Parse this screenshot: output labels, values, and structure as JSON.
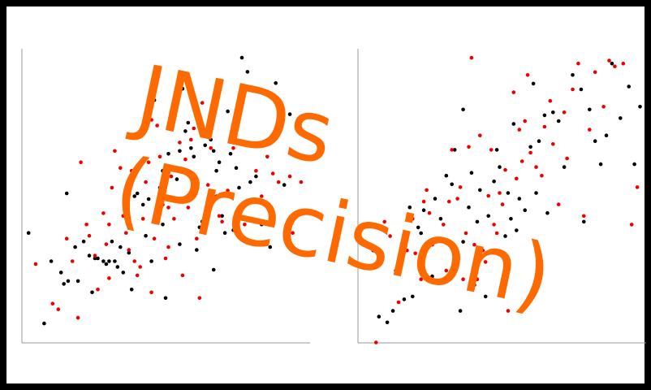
{
  "overlay": {
    "line1": "JNDs",
    "line2": "(Precision)",
    "color": "#ff6a00"
  },
  "colors": {
    "frame": "#000000",
    "background": "#ffffff",
    "axis": "#9a9a9a",
    "series_a": "#000000",
    "series_b": "#ee0000"
  },
  "chart_data": [
    {
      "type": "scatter",
      "xlabel": "",
      "ylabel": "",
      "xlim": [
        0,
        10
      ],
      "ylim": [
        0,
        10
      ],
      "grid": false,
      "series": [
        {
          "color": "#000000",
          "points": [
            [
              0.15,
              3.6
            ],
            [
              0.7,
              0.4
            ],
            [
              0.95,
              2.6
            ],
            [
              1.3,
              2.2
            ],
            [
              1.4,
              1.8
            ],
            [
              1.55,
              1.9
            ],
            [
              1.5,
              5.0
            ],
            [
              1.8,
              3.1
            ],
            [
              1.9,
              1.9
            ],
            [
              2.1,
              3.3
            ],
            [
              2.3,
              2.8
            ],
            [
              2.5,
              2.7
            ],
            [
              2.6,
              2.7
            ],
            [
              2.8,
              2.6
            ],
            [
              2.9,
              2.5
            ],
            [
              3.0,
              2.6
            ],
            [
              3.1,
              3.3
            ],
            [
              3.2,
              2.6
            ],
            [
              3.3,
              2.4
            ],
            [
              3.4,
              3.1
            ],
            [
              3.5,
              2.2
            ],
            [
              3.6,
              4.4
            ],
            [
              3.8,
              1.6
            ],
            [
              3.9,
              4.9
            ],
            [
              4.0,
              5.0
            ],
            [
              4.2,
              4.6
            ],
            [
              4.3,
              3.5
            ],
            [
              4.5,
              2.6
            ],
            [
              4.6,
              8.3
            ],
            [
              4.7,
              4.3
            ],
            [
              4.8,
              5.2
            ],
            [
              4.9,
              3.9
            ],
            [
              5.0,
              1.3
            ],
            [
              5.1,
              6.4
            ],
            [
              5.2,
              7.8
            ],
            [
              5.3,
              8.1
            ],
            [
              5.4,
              5.5
            ],
            [
              5.5,
              6.5
            ],
            [
              5.6,
              4.8
            ],
            [
              5.7,
              7.2
            ],
            [
              5.8,
              7.5
            ],
            [
              5.9,
              6.6
            ],
            [
              6.0,
              6.3
            ],
            [
              6.1,
              5.1
            ],
            [
              6.2,
              3.8
            ],
            [
              6.3,
              4.0
            ],
            [
              6.4,
              6.7
            ],
            [
              6.5,
              7.2
            ],
            [
              6.6,
              6.9
            ],
            [
              6.7,
              6.5
            ],
            [
              6.8,
              5.8
            ],
            [
              6.9,
              6.1
            ],
            [
              7.0,
              4.2
            ],
            [
              7.1,
              3.6
            ],
            [
              7.2,
              7.9
            ],
            [
              7.3,
              6.4
            ],
            [
              7.4,
              3.7
            ],
            [
              7.5,
              5.9
            ],
            [
              7.6,
              5.2
            ],
            [
              7.7,
              9.8
            ],
            [
              7.8,
              4.6
            ],
            [
              7.9,
              9.3
            ],
            [
              8.0,
              5.4
            ],
            [
              8.2,
              5.6
            ],
            [
              8.4,
              3.9
            ],
            [
              8.5,
              4.6
            ],
            [
              8.7,
              3.1
            ],
            [
              8.9,
              8.9
            ],
            [
              9.0,
              7.6
            ],
            [
              9.2,
              5.3
            ],
            [
              9.4,
              7.8
            ],
            [
              5.9,
              5.7
            ],
            [
              5.5,
              3.2
            ],
            [
              6.1,
              3.0
            ],
            [
              4.4,
              4.8
            ],
            [
              4.9,
              5.8
            ],
            [
              3.7,
              2.9
            ],
            [
              5.6,
              8.7
            ],
            [
              6.7,
              2.3
            ],
            [
              2.4,
              1.5
            ]
          ]
        },
        {
          "color": "#ee0000",
          "points": [
            [
              0.4,
              2.5
            ],
            [
              1.0,
              1.1
            ],
            [
              1.2,
              0.9
            ],
            [
              1.5,
              3.4
            ],
            [
              1.7,
              2.6
            ],
            [
              1.9,
              0.6
            ],
            [
              2.0,
              6.1
            ],
            [
              2.2,
              3.9
            ],
            [
              2.3,
              3.5
            ],
            [
              2.5,
              2.8
            ],
            [
              2.6,
              1.6
            ],
            [
              2.8,
              4.3
            ],
            [
              2.9,
              3.2
            ],
            [
              3.0,
              2.0
            ],
            [
              3.1,
              5.2
            ],
            [
              3.2,
              6.5
            ],
            [
              3.4,
              5.9
            ],
            [
              3.5,
              4.2
            ],
            [
              3.6,
              3.6
            ],
            [
              3.7,
              3.0
            ],
            [
              3.8,
              5.8
            ],
            [
              3.9,
              2.6
            ],
            [
              4.0,
              2.1
            ],
            [
              4.1,
              2.4
            ],
            [
              4.2,
              4.1
            ],
            [
              4.3,
              5.4
            ],
            [
              4.4,
              6.1
            ],
            [
              4.5,
              1.5
            ],
            [
              4.6,
              3.4
            ],
            [
              4.7,
              7.4
            ],
            [
              4.8,
              6.3
            ],
            [
              4.9,
              4.6
            ],
            [
              5.0,
              2.7
            ],
            [
              5.1,
              3.1
            ],
            [
              5.2,
              5.6
            ],
            [
              5.3,
              4.1
            ],
            [
              5.4,
              8.4
            ],
            [
              5.5,
              6.8
            ],
            [
              5.6,
              2.1
            ],
            [
              5.7,
              6.2
            ],
            [
              5.8,
              4.5
            ],
            [
              5.9,
              6.9
            ],
            [
              6.0,
              5.6
            ],
            [
              6.1,
              3.4
            ],
            [
              6.2,
              1.3
            ],
            [
              6.3,
              8.2
            ],
            [
              6.4,
              3.7
            ],
            [
              6.5,
              5.3
            ],
            [
              6.6,
              6.6
            ],
            [
              6.7,
              7.9
            ],
            [
              6.8,
              4.9
            ],
            [
              6.9,
              4.2
            ],
            [
              7.0,
              4.0
            ],
            [
              7.2,
              5.1
            ],
            [
              7.4,
              6.6
            ],
            [
              7.6,
              4.3
            ],
            [
              7.8,
              3.9
            ],
            [
              8.0,
              6.7
            ],
            [
              8.2,
              5.8
            ],
            [
              8.4,
              4.9
            ],
            [
              8.6,
              6.3
            ],
            [
              8.8,
              5.7
            ],
            [
              9.0,
              5.4
            ],
            [
              9.4,
              5.6
            ],
            [
              9.5,
              3.6
            ],
            [
              9.8,
              5.4
            ],
            [
              5.1,
              4.5
            ],
            [
              4.5,
              7.6
            ],
            [
              6.0,
              7.3
            ],
            [
              3.0,
              3.9
            ]
          ]
        }
      ]
    },
    {
      "type": "scatter",
      "xlabel": "",
      "ylabel": "",
      "xlim": [
        0,
        10
      ],
      "ylim": [
        0,
        10
      ],
      "grid": false,
      "series": [
        {
          "color": "#000000",
          "points": [
            [
              0.4,
              3.1
            ],
            [
              0.6,
              0.8
            ],
            [
              0.9,
              0.6
            ],
            [
              1.1,
              1.0
            ],
            [
              1.3,
              2.7
            ],
            [
              1.5,
              1.4
            ],
            [
              1.7,
              4.6
            ],
            [
              2.0,
              3.9
            ],
            [
              2.2,
              4.5
            ],
            [
              2.5,
              2.2
            ],
            [
              2.6,
              4.9
            ],
            [
              2.8,
              4.2
            ],
            [
              3.0,
              5.7
            ],
            [
              3.2,
              5.4
            ],
            [
              3.4,
              2.9
            ],
            [
              3.5,
              1.0
            ],
            [
              3.6,
              3.4
            ],
            [
              3.8,
              4.6
            ],
            [
              3.9,
              5.8
            ],
            [
              4.0,
              1.9
            ],
            [
              4.1,
              4.1
            ],
            [
              4.2,
              5.2
            ],
            [
              4.4,
              1.5
            ],
            [
              4.5,
              4.3
            ],
            [
              4.7,
              5.5
            ],
            [
              4.9,
              6.0
            ],
            [
              5.1,
              3.6
            ],
            [
              5.2,
              5.1
            ],
            [
              5.3,
              4.2
            ],
            [
              5.5,
              3.8
            ],
            [
              5.6,
              4.9
            ],
            [
              5.8,
              4.5
            ],
            [
              6.0,
              6.7
            ],
            [
              6.1,
              8.9
            ],
            [
              6.3,
              6.9
            ],
            [
              6.5,
              7.8
            ],
            [
              6.6,
              4.4
            ],
            [
              6.8,
              7.9
            ],
            [
              7.0,
              7.6
            ],
            [
              7.2,
              6.0
            ],
            [
              7.5,
              9.2
            ],
            [
              7.8,
              8.7
            ],
            [
              8.1,
              8.0
            ],
            [
              8.3,
              6.9
            ],
            [
              8.5,
              6.1
            ],
            [
              8.7,
              7.1
            ],
            [
              8.9,
              9.6
            ],
            [
              9.2,
              7.7
            ],
            [
              9.5,
              8.8
            ],
            [
              9.7,
              6.1
            ],
            [
              9.9,
              8.1
            ],
            [
              5.4,
              7.5
            ],
            [
              6.2,
              5.1
            ],
            [
              4.8,
              6.6
            ],
            [
              3.3,
              6.6
            ],
            [
              2.1,
              3.7
            ],
            [
              7.9,
              4.1
            ],
            [
              1.8,
              1.5
            ],
            [
              3.6,
              8.0
            ]
          ]
        },
        {
          "color": "#ee0000",
          "points": [
            [
              0.5,
              -0.1
            ],
            [
              0.8,
              4.1
            ],
            [
              1.0,
              3.6
            ],
            [
              1.2,
              2.4
            ],
            [
              1.3,
              1.3
            ],
            [
              1.4,
              3.2
            ],
            [
              1.6,
              3.1
            ],
            [
              1.8,
              4.2
            ],
            [
              1.9,
              3.0
            ],
            [
              2.1,
              2.1
            ],
            [
              2.3,
              5.2
            ],
            [
              2.4,
              4.4
            ],
            [
              2.5,
              3.3
            ],
            [
              2.7,
              3.5
            ],
            [
              2.9,
              4.0
            ],
            [
              3.0,
              2.4
            ],
            [
              3.1,
              4.8
            ],
            [
              3.3,
              3.2
            ],
            [
              3.4,
              4.9
            ],
            [
              3.5,
              5.3
            ],
            [
              3.6,
              2.1
            ],
            [
              3.7,
              3.7
            ],
            [
              3.8,
              6.7
            ],
            [
              3.9,
              9.8
            ],
            [
              4.0,
              3.3
            ],
            [
              4.1,
              2.1
            ],
            [
              4.3,
              3.1
            ],
            [
              4.4,
              2.7
            ],
            [
              4.5,
              5.0
            ],
            [
              4.6,
              6.6
            ],
            [
              4.7,
              4.0
            ],
            [
              4.8,
              3.7
            ],
            [
              4.9,
              5.1
            ],
            [
              5.0,
              4.7
            ],
            [
              5.1,
              5.9
            ],
            [
              5.2,
              1.0
            ],
            [
              5.4,
              8.6
            ],
            [
              5.5,
              5.6
            ],
            [
              5.6,
              7.3
            ],
            [
              5.7,
              6.2
            ],
            [
              5.8,
              7.6
            ],
            [
              6.0,
              6.5
            ],
            [
              6.2,
              6.0
            ],
            [
              6.4,
              5.7
            ],
            [
              6.5,
              7.4
            ],
            [
              6.7,
              8.3
            ],
            [
              6.8,
              6.8
            ],
            [
              7.0,
              4.7
            ],
            [
              7.2,
              7.9
            ],
            [
              7.3,
              6.3
            ],
            [
              7.5,
              8.7
            ],
            [
              7.7,
              9.6
            ],
            [
              7.9,
              4.3
            ],
            [
              8.1,
              7.3
            ],
            [
              8.3,
              9.3
            ],
            [
              8.6,
              8.1
            ],
            [
              8.8,
              9.7
            ],
            [
              9.0,
              9.5
            ],
            [
              9.3,
              9.6
            ],
            [
              9.6,
              4.0
            ],
            [
              9.8,
              5.3
            ],
            [
              2.2,
              4.8
            ],
            [
              3.2,
              6.6
            ],
            [
              5.9,
              9.2
            ],
            [
              4.2,
              7.1
            ]
          ]
        }
      ]
    }
  ]
}
